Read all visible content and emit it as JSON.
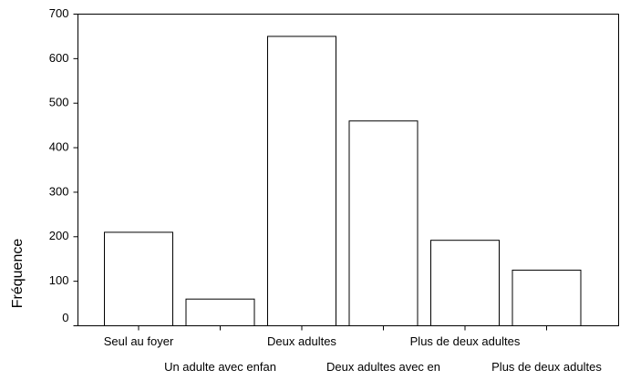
{
  "chart_data": {
    "type": "bar",
    "categories": [
      "Seul au foyer",
      "Un adulte avec enfan",
      "Deux adultes",
      "Deux adultes avec en",
      "Plus de deux adultes",
      "Plus de deux adultes"
    ],
    "values": [
      210,
      60,
      650,
      460,
      192,
      125
    ],
    "color": "#ffffff",
    "ylabel": "Fréquence",
    "ylim": [
      0,
      700
    ],
    "yticks": [
      0,
      100,
      200,
      300,
      400,
      500,
      600,
      700
    ],
    "grid": false
  }
}
